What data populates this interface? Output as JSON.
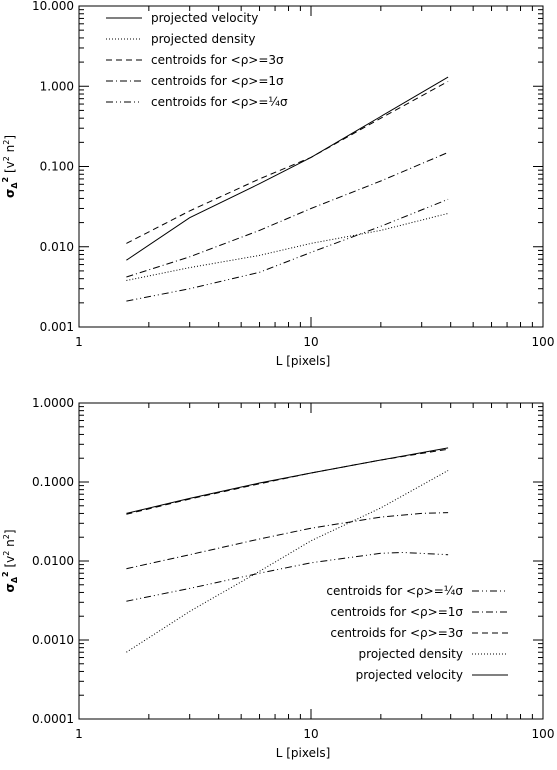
{
  "chart_data": [
    {
      "type": "line",
      "xscale": "log",
      "yscale": "log",
      "xlim": [
        1,
        100
      ],
      "ylim": [
        0.001,
        10
      ],
      "xlabel": "L [pixels]",
      "ylabel": "σ_Δ² [v² n²]",
      "xticks": [
        1,
        10,
        100
      ],
      "xtick_labels": [
        "1",
        "10",
        "100"
      ],
      "yticks": [
        0.001,
        0.01,
        0.1,
        1,
        10
      ],
      "ytick_labels": [
        "0.001",
        "0.010",
        "0.100",
        "1.000",
        "10.000"
      ],
      "legend_position": "top-left",
      "series": [
        {
          "name": "projected velocity",
          "style": "solid",
          "x": [
            1.6,
            3,
            6,
            10,
            20,
            39
          ],
          "y": [
            0.0068,
            0.023,
            0.061,
            0.13,
            0.42,
            1.3
          ]
        },
        {
          "name": "projected density",
          "style": "dotted",
          "x": [
            1.6,
            3,
            6,
            10,
            20,
            39
          ],
          "y": [
            0.0038,
            0.0055,
            0.0078,
            0.011,
            0.016,
            0.026
          ]
        },
        {
          "name": "centroids for <ρ>=3σ",
          "style": "dashed",
          "x": [
            1.6,
            3,
            6,
            10,
            20,
            39
          ],
          "y": [
            0.011,
            0.028,
            0.07,
            0.13,
            0.4,
            1.15
          ]
        },
        {
          "name": "centroids for <ρ>=1σ",
          "style": "dashdot",
          "x": [
            1.6,
            3,
            6,
            10,
            20,
            39
          ],
          "y": [
            0.0042,
            0.0075,
            0.016,
            0.03,
            0.066,
            0.15
          ]
        },
        {
          "name": "centroids for <ρ>=¼σ",
          "style": "dashdotdot",
          "x": [
            1.6,
            3,
            6,
            10,
            20,
            39
          ],
          "y": [
            0.0021,
            0.003,
            0.0048,
            0.0085,
            0.018,
            0.039
          ]
        }
      ]
    },
    {
      "type": "line",
      "xscale": "log",
      "yscale": "log",
      "xlim": [
        1,
        100
      ],
      "ylim": [
        0.0001,
        1
      ],
      "xlabel": "L [pixels]",
      "ylabel": "σ_Δ² [v² n²]",
      "xticks": [
        1,
        10,
        100
      ],
      "xtick_labels": [
        "1",
        "10",
        "100"
      ],
      "yticks": [
        0.0001,
        0.001,
        0.01,
        0.1,
        1
      ],
      "ytick_labels": [
        "0.0001",
        "0.0010",
        "0.0100",
        "0.1000",
        "1.0000"
      ],
      "legend_position": "bottom-right",
      "series": [
        {
          "name": "centroids for <ρ>=¼σ",
          "style": "dashdotdot",
          "x": [
            1.6,
            3,
            6,
            10,
            20,
            25,
            39
          ],
          "y": [
            0.0031,
            0.0045,
            0.007,
            0.0095,
            0.0125,
            0.0128,
            0.012
          ]
        },
        {
          "name": "centroids for <ρ>=1σ",
          "style": "dashdot",
          "x": [
            1.6,
            3,
            6,
            10,
            20,
            30,
            39
          ],
          "y": [
            0.008,
            0.012,
            0.019,
            0.026,
            0.036,
            0.04,
            0.041
          ]
        },
        {
          "name": "centroids for <ρ>=3σ",
          "style": "dashed",
          "x": [
            1.6,
            3,
            6,
            10,
            20,
            39
          ],
          "y": [
            0.039,
            0.061,
            0.095,
            0.13,
            0.19,
            0.26
          ]
        },
        {
          "name": "projected density",
          "style": "dotted",
          "x": [
            1.6,
            3,
            6,
            10,
            20,
            39
          ],
          "y": [
            0.0007,
            0.0023,
            0.0074,
            0.018,
            0.047,
            0.14
          ]
        },
        {
          "name": "projected velocity",
          "style": "solid",
          "x": [
            1.6,
            3,
            6,
            10,
            20,
            39
          ],
          "y": [
            0.04,
            0.062,
            0.097,
            0.13,
            0.19,
            0.27
          ]
        }
      ]
    }
  ]
}
